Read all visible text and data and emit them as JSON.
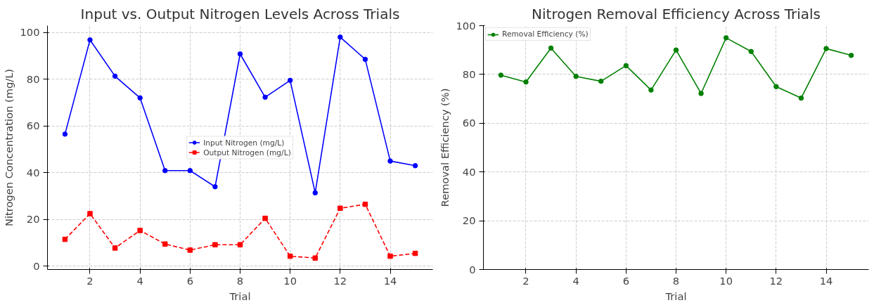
{
  "chart_data": [
    {
      "type": "line",
      "title": "Input vs. Output Nitrogen Levels Across Trials",
      "xlabel": "Trial",
      "ylabel": "Nitrogen Concentration (mg/L)",
      "x": [
        1,
        2,
        3,
        4,
        5,
        6,
        7,
        8,
        9,
        10,
        11,
        12,
        13,
        14,
        15
      ],
      "xlim": [
        0.3,
        15.7
      ],
      "xticks": [
        2,
        4,
        6,
        8,
        10,
        12,
        14
      ],
      "ylim": [
        -1.4,
        102.9
      ],
      "yticks": [
        0,
        20,
        40,
        60,
        80,
        100
      ],
      "grid": true,
      "legend": "center",
      "series": [
        {
          "name": "Input Nitrogen (mg/L)",
          "color": "#0000ff",
          "marker": "circle",
          "line_style": "solid",
          "values": [
            56.5,
            96.8,
            81.3,
            72,
            40.9,
            40.9,
            34,
            90.8,
            72.3,
            79.5,
            31.4,
            98,
            88.5,
            45,
            43
          ]
        },
        {
          "name": "Output Nitrogen (mg/L)",
          "color": "#ff0000",
          "marker": "square",
          "line_style": "dashed",
          "values": [
            11.5,
            22.5,
            7.8,
            15.3,
            9.5,
            6.9,
            9.2,
            9.2,
            20.5,
            4.3,
            3.5,
            24.8,
            26.5,
            4.3,
            5.5
          ]
        }
      ]
    },
    {
      "type": "line",
      "title": "Nitrogen Removal Efficiency Across Trials",
      "xlabel": "Trial",
      "ylabel": "Removal Efficiency (%)",
      "x": [
        1,
        2,
        3,
        4,
        5,
        6,
        7,
        8,
        9,
        10,
        11,
        12,
        13,
        14,
        15
      ],
      "xlim": [
        0.3,
        15.7
      ],
      "xticks": [
        2,
        4,
        6,
        8,
        10,
        12,
        14
      ],
      "ylim": [
        0,
        100
      ],
      "yticks": [
        0,
        20,
        40,
        60,
        80,
        100
      ],
      "grid": true,
      "legend": "top left",
      "series": [
        {
          "name": "Removal Efficiency (%)",
          "color": "#008000",
          "marker": "circle",
          "line_style": "solid",
          "values": [
            79.7,
            76.9,
            90.8,
            79.2,
            77.2,
            83.6,
            73.6,
            90,
            72.2,
            95,
            89.4,
            75,
            70.3,
            90.6,
            87.8
          ]
        }
      ]
    }
  ]
}
